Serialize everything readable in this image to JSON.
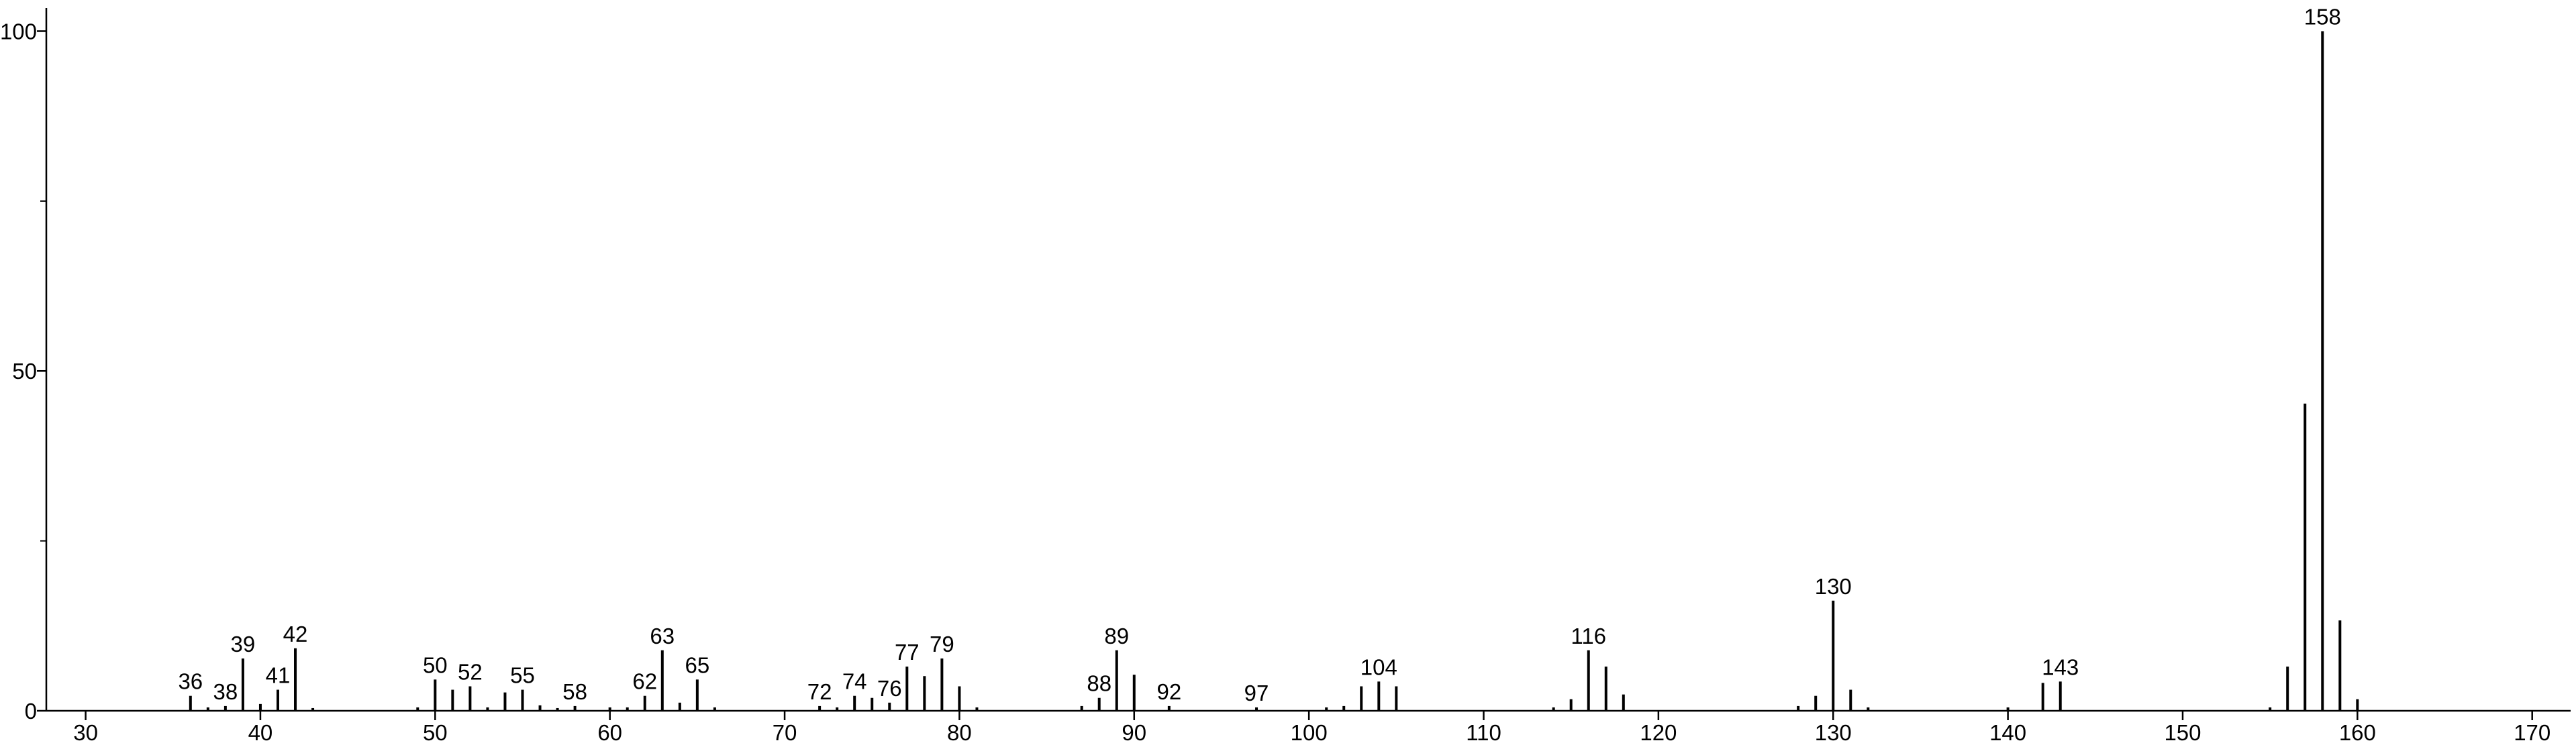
{
  "chart_data": {
    "type": "stick",
    "x": [
      36,
      37,
      38,
      39,
      40,
      41,
      42,
      43,
      49,
      50,
      51,
      52,
      53,
      54,
      55,
      56,
      57,
      58,
      60,
      61,
      62,
      63,
      64,
      65,
      66,
      72,
      73,
      74,
      75,
      76,
      77,
      78,
      79,
      80,
      81,
      87,
      88,
      89,
      90,
      92,
      97,
      101,
      102,
      103,
      104,
      105,
      114,
      115,
      116,
      117,
      118,
      128,
      129,
      130,
      131,
      132,
      140,
      142,
      143,
      155,
      156,
      157,
      158,
      159,
      160
    ],
    "values": [
      2.2,
      0.5,
      0.7,
      7.7,
      1,
      3.1,
      9.2,
      0.4,
      0.5,
      4.6,
      3.1,
      3.6,
      0.5,
      2.7,
      3.1,
      0.8,
      0.4,
      0.7,
      0.5,
      0.5,
      2.2,
      8.9,
      1.2,
      4.6,
      0.5,
      0.7,
      0.5,
      2.2,
      1.9,
      1.2,
      6.5,
      5.1,
      7.7,
      3.6,
      0.5,
      0.7,
      1.9,
      8.9,
      5.3,
      0.7,
      0.5,
      0.5,
      0.7,
      3.6,
      4.3,
      3.6,
      0.5,
      1.7,
      8.9,
      6.5,
      2.4,
      0.7,
      2.2,
      16.2,
      3.1,
      0.5,
      0.5,
      4.1,
      4.3,
      0.5,
      6.5,
      45.2,
      100,
      13.3,
      1.7
    ],
    "peak_labels": [
      "36",
      null,
      "38",
      "39",
      null,
      "41",
      "42",
      null,
      null,
      "50",
      null,
      "52",
      null,
      null,
      "55",
      null,
      null,
      "58",
      null,
      null,
      "62",
      "63",
      null,
      "65",
      null,
      "72",
      null,
      "74",
      null,
      "76",
      "77",
      null,
      "79",
      null,
      null,
      null,
      "88",
      "89",
      null,
      "92",
      "97",
      null,
      null,
      null,
      "104",
      null,
      null,
      null,
      "116",
      null,
      null,
      null,
      null,
      "130",
      null,
      null,
      null,
      null,
      "143",
      null,
      null,
      null,
      "158",
      null,
      null
    ],
    "color": "#000000",
    "xlim": [
      27.75,
      172.2
    ],
    "xticks": [
      30,
      40,
      50,
      60,
      70,
      80,
      90,
      100,
      110,
      120,
      130,
      140,
      150,
      160,
      170
    ],
    "ylim": [
      0,
      103.4
    ],
    "yticks": [
      0,
      50,
      100
    ],
    "yminor": [
      25,
      75
    ]
  }
}
